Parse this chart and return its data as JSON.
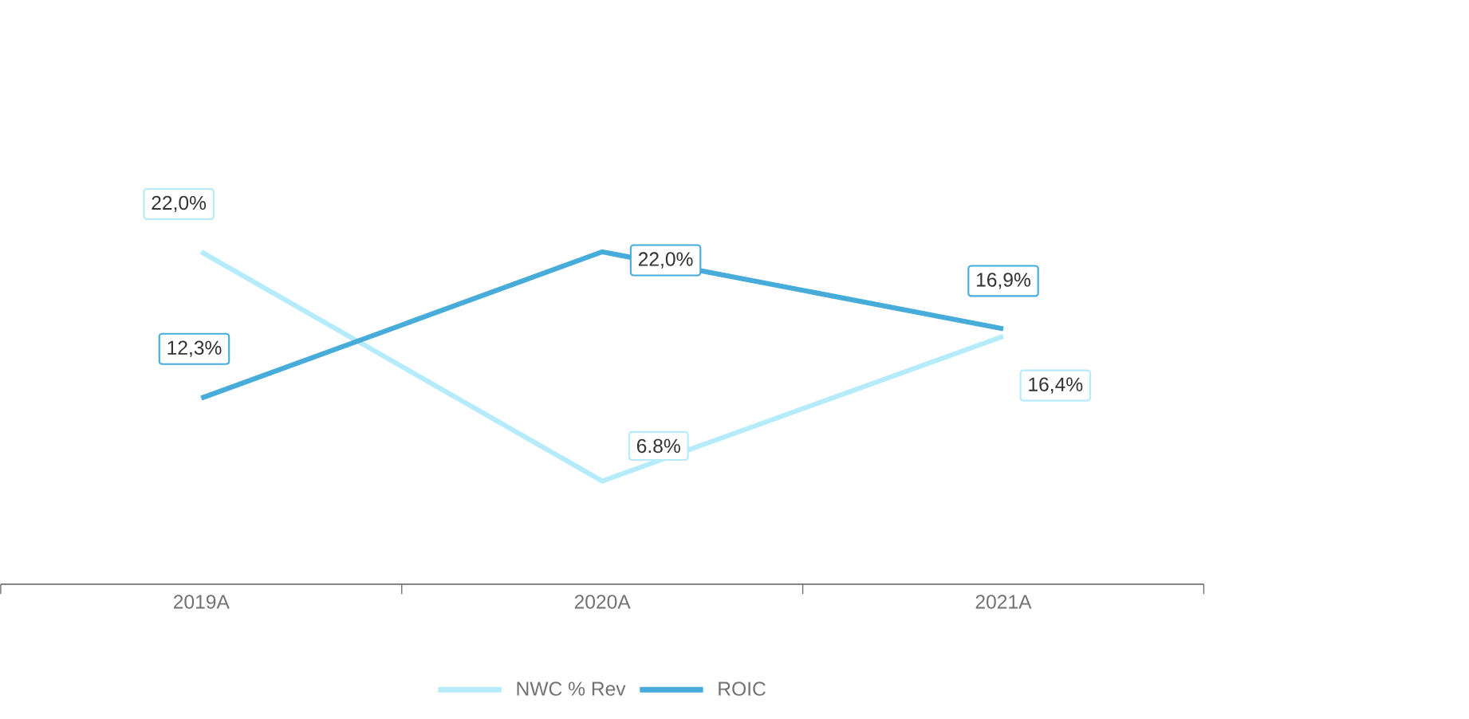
{
  "chart_data": {
    "type": "line",
    "categories": [
      "2019A",
      "2020A",
      "2021A"
    ],
    "series": [
      {
        "name": "NWC % Rev",
        "color": "#b5ebfb",
        "values": [
          22.0,
          6.8,
          16.4
        ],
        "value_labels": [
          "22,0%",
          "6.8%",
          "16,4%"
        ]
      },
      {
        "name": "ROIC",
        "color": "#47acd9",
        "values": [
          12.3,
          22.0,
          16.9
        ],
        "value_labels": [
          "12,3%",
          "22,0%",
          "16,9%"
        ]
      }
    ],
    "tick_labels": "x",
    "grid": false,
    "legend": "bottom",
    "marker": "none",
    "line_style": "solid"
  }
}
